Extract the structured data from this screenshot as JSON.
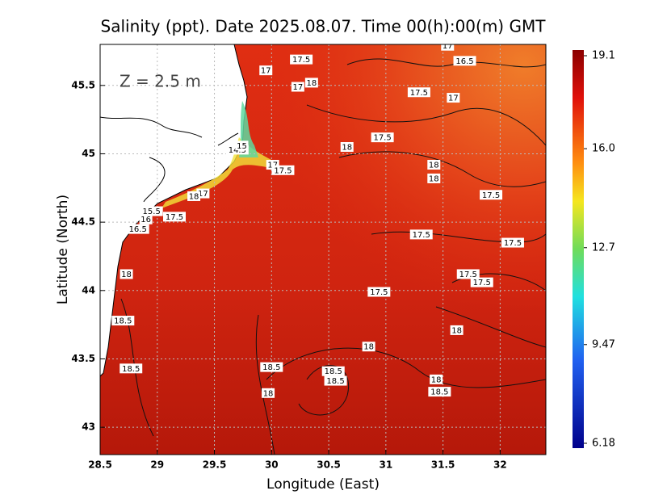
{
  "chart_data": {
    "type": "contour-map",
    "title": "Salinity (ppt). Date 2025.08.07. Time 00(h):00(m) GMT",
    "annotation": "Z = 2.5 m",
    "x_label": "Longitude (East)",
    "y_label": "Latitude (North)",
    "xlim": [
      28.5,
      32.4
    ],
    "ylim": [
      42.8,
      45.8
    ],
    "xticks": [
      28.5,
      29,
      29.5,
      30,
      30.5,
      31,
      31.5,
      32
    ],
    "yticks": [
      43,
      43.5,
      44,
      44.5,
      45,
      45.5
    ],
    "grid": true,
    "colorbar": {
      "clim": [
        6.18,
        19.1
      ],
      "ticks": [
        19.1,
        {
          "value": 16,
          "label": "16.0"
        },
        12.7,
        9.47,
        6.18
      ]
    },
    "contour_labels": [
      {
        "value": 17.5,
        "x": 30.26,
        "y": 45.69
      },
      {
        "value": 17,
        "x": 31.54,
        "y": 45.79
      },
      {
        "value": 16.5,
        "x": 31.69,
        "y": 45.68
      },
      {
        "value": 17,
        "x": 29.95,
        "y": 45.61
      },
      {
        "value": 17,
        "x": 30.23,
        "y": 45.49
      },
      {
        "value": 18,
        "x": 30.35,
        "y": 45.52
      },
      {
        "value": 17.5,
        "x": 31.29,
        "y": 45.45
      },
      {
        "value": 17,
        "x": 31.59,
        "y": 45.41
      },
      {
        "value": 17.5,
        "x": 30.97,
        "y": 45.12
      },
      {
        "value": 18,
        "x": 30.66,
        "y": 45.05
      },
      {
        "value": 14.5,
        "x": 29.7,
        "y": 45.03
      },
      {
        "value": 15,
        "x": 29.74,
        "y": 45.06
      },
      {
        "value": 17,
        "x": 30.01,
        "y": 44.92
      },
      {
        "value": 17.5,
        "x": 30.1,
        "y": 44.88
      },
      {
        "value": 18,
        "x": 31.42,
        "y": 44.92
      },
      {
        "value": 18,
        "x": 31.42,
        "y": 44.82
      },
      {
        "value": 17.5,
        "x": 31.92,
        "y": 44.7
      },
      {
        "value": 17,
        "x": 29.4,
        "y": 44.71
      },
      {
        "value": 18,
        "x": 29.32,
        "y": 44.69
      },
      {
        "value": 15.5,
        "x": 28.95,
        "y": 44.58
      },
      {
        "value": 17.5,
        "x": 29.15,
        "y": 44.54
      },
      {
        "value": 16,
        "x": 28.9,
        "y": 44.52
      },
      {
        "value": 16.5,
        "x": 28.83,
        "y": 44.45
      },
      {
        "value": 17.5,
        "x": 31.31,
        "y": 44.41
      },
      {
        "value": 17.5,
        "x": 32.11,
        "y": 44.35
      },
      {
        "value": 18,
        "x": 28.73,
        "y": 44.12
      },
      {
        "value": 17.5,
        "x": 31.72,
        "y": 44.12
      },
      {
        "value": 17.5,
        "x": 31.84,
        "y": 44.06
      },
      {
        "value": 17.5,
        "x": 30.94,
        "y": 43.99
      },
      {
        "value": 18.5,
        "x": 28.7,
        "y": 43.78
      },
      {
        "value": 18,
        "x": 31.62,
        "y": 43.71
      },
      {
        "value": 18,
        "x": 30.85,
        "y": 43.59
      },
      {
        "value": 18.5,
        "x": 30.0,
        "y": 43.44
      },
      {
        "value": 18.5,
        "x": 28.77,
        "y": 43.43
      },
      {
        "value": 18.5,
        "x": 30.54,
        "y": 43.41
      },
      {
        "value": 18.5,
        "x": 30.56,
        "y": 43.34
      },
      {
        "value": 18,
        "x": 31.44,
        "y": 43.35
      },
      {
        "value": 18.5,
        "x": 31.47,
        "y": 43.26
      },
      {
        "value": 18,
        "x": 29.97,
        "y": 43.25
      }
    ]
  }
}
